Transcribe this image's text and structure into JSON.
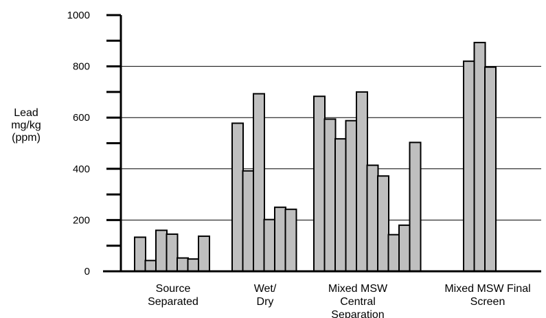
{
  "chart_data": {
    "type": "bar",
    "ylabel_lines": [
      "Lead",
      "mg/kg",
      "(ppm)"
    ],
    "xlabel": "",
    "ylim": [
      0,
      1000
    ],
    "y_ticks": [
      "0",
      "200",
      "400",
      "600",
      "800",
      "1000"
    ],
    "y_tick_values": [
      0,
      200,
      400,
      600,
      800,
      1000
    ],
    "grid": "horizontal lines at 200, 400, 600, 800",
    "bar_color": "#bfbfbf",
    "groups": [
      {
        "label_lines": [
          "Source",
          "Separated"
        ],
        "values": [
          133,
          42,
          160,
          145,
          52,
          48,
          137
        ]
      },
      {
        "label_lines": [
          "Wet/",
          "Dry"
        ],
        "values": [
          578,
          392,
          693,
          202,
          250,
          242
        ]
      },
      {
        "label_lines": [
          "Mixed MSW",
          "Central",
          "Separation"
        ],
        "values": [
          683,
          594,
          517,
          588,
          700,
          414,
          372,
          143,
          180,
          503
        ]
      },
      {
        "label_lines": [
          "Mixed MSW Final",
          "Screen"
        ],
        "values": [
          820,
          893,
          797
        ]
      }
    ]
  }
}
